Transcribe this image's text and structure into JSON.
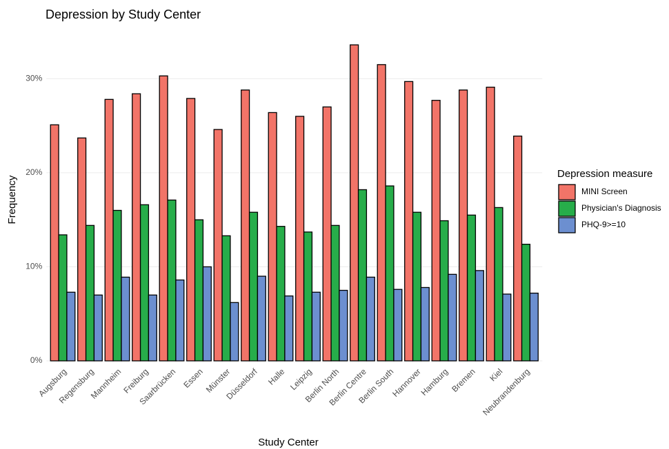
{
  "chart_data": {
    "type": "bar",
    "title": "Depression by Study Center",
    "x_label": "Study Center",
    "y_label": "Frequency",
    "categories": [
      "Augsburg",
      "Regensburg",
      "Mannheim",
      "Freiburg",
      "Saarbrücken",
      "Essen",
      "Münster",
      "Düsseldorf",
      "Halle",
      "Leipzig",
      "Berlin North",
      "Berlin Centre",
      "Berlin South",
      "Hannover",
      "Hamburg",
      "Bremen",
      "Kiel",
      "Neubrandenburg"
    ],
    "series": [
      {
        "name": "MINI Screen",
        "color": "#f27468",
        "values": [
          25.1,
          23.7,
          27.8,
          28.4,
          30.3,
          27.9,
          24.6,
          28.8,
          26.4,
          26.0,
          27.0,
          33.6,
          31.5,
          29.7,
          27.7,
          28.8,
          29.1,
          23.9
        ]
      },
      {
        "name": "Physician's Diagnosis",
        "color": "#27ad4a",
        "values": [
          13.4,
          14.4,
          16.0,
          16.6,
          17.1,
          15.0,
          13.3,
          15.8,
          14.3,
          13.7,
          14.4,
          18.2,
          18.6,
          15.8,
          14.9,
          15.5,
          16.3,
          12.4
        ]
      },
      {
        "name": "PHQ-9>=10",
        "color": "#6c8fd0",
        "values": [
          7.3,
          7.0,
          8.9,
          7.0,
          8.6,
          10.0,
          6.2,
          9.0,
          6.9,
          7.3,
          7.5,
          8.9,
          7.6,
          7.8,
          9.2,
          9.6,
          7.1,
          7.2
        ]
      }
    ],
    "legend_title": "Depression measure",
    "ylim": [
      0,
      35
    ],
    "yticks": [
      {
        "value": 0,
        "label": "0%"
      },
      {
        "value": 10,
        "label": "10%"
      },
      {
        "value": 20,
        "label": "20%"
      },
      {
        "value": 30,
        "label": "30%"
      }
    ],
    "grid": true,
    "legend": "right"
  }
}
